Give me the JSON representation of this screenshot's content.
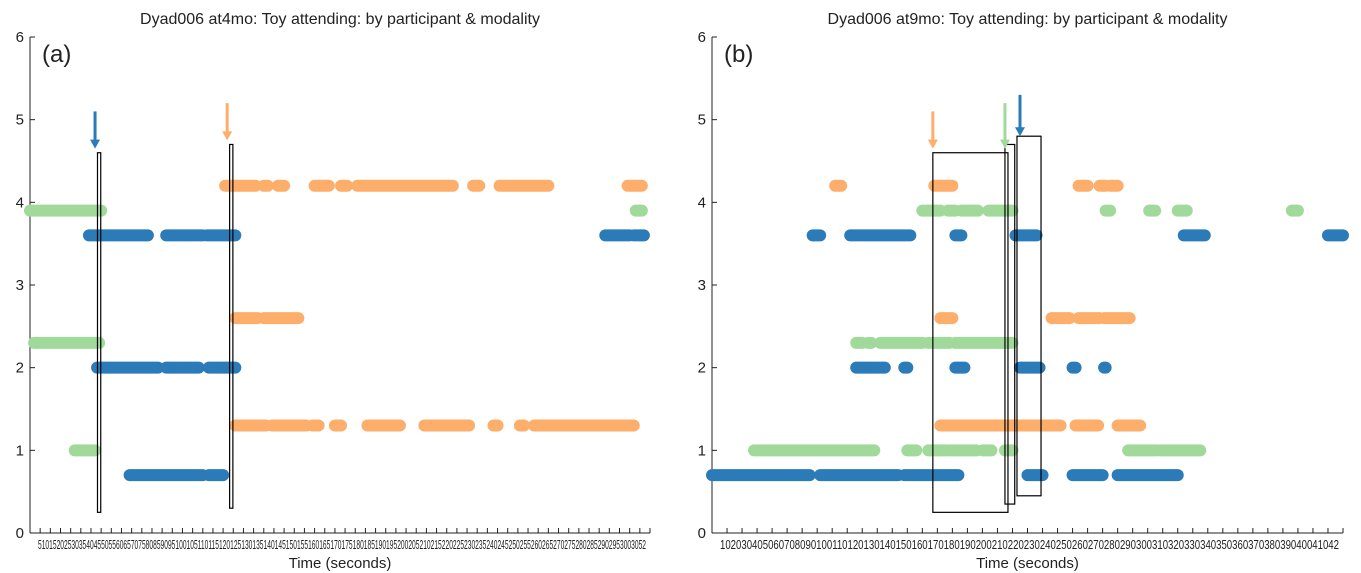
{
  "colors": {
    "blue": "#2b7bb9",
    "orange": "#fdae6b",
    "green": "#a1d99b"
  },
  "chart_data": [
    {
      "type": "scatter",
      "panel_label": "(a)",
      "title": "Dyad006 at4mo: Toy attending: by participant & modality",
      "xlabel": "Time (seconds)",
      "ylabel": "",
      "xlim": [
        0,
        305
      ],
      "ylim": [
        0,
        6
      ],
      "yticks": [
        "0",
        "1",
        "2",
        "3",
        "4",
        "5",
        "6"
      ],
      "xtick_labels": "51015202530354045505560657075808590951001051101151201251301351401451501551601651701751801851901952002052102152202252302352402452502552602652702752802852902953003052",
      "series": [
        {
          "color": "green",
          "y": 3.9,
          "segments": [
            [
              0,
              35
            ]
          ]
        },
        {
          "color": "blue",
          "y": 3.6,
          "segments": [
            [
              29,
              58
            ],
            [
              67,
              85
            ],
            [
              87,
              101
            ],
            [
              283,
              295
            ],
            [
              297,
              302
            ]
          ]
        },
        {
          "color": "orange",
          "y": 4.2,
          "segments": [
            [
              96,
              111
            ],
            [
              115,
              117
            ],
            [
              122,
              125
            ],
            [
              140,
              147
            ],
            [
              153,
              156
            ],
            [
              161,
              208
            ],
            [
              218,
              221
            ],
            [
              231,
              255
            ],
            [
              294,
              301
            ]
          ]
        },
        {
          "color": "green",
          "y": 3.9,
          "segments": [
            [
              298,
              301
            ]
          ]
        },
        {
          "color": "orange",
          "y": 2.6,
          "segments": [
            [
              101,
              112
            ],
            [
              115,
              132
            ]
          ]
        },
        {
          "color": "green",
          "y": 2.3,
          "segments": [
            [
              2,
              15
            ],
            [
              16,
              34
            ]
          ]
        },
        {
          "color": "blue",
          "y": 2.0,
          "segments": [
            [
              33,
              63
            ],
            [
              67,
              83
            ],
            [
              88,
              101
            ]
          ]
        },
        {
          "color": "orange",
          "y": 1.3,
          "segments": [
            [
              101,
              116
            ],
            [
              119,
              136
            ],
            [
              139,
              142
            ],
            [
              150,
              153
            ],
            [
              166,
              182
            ],
            [
              194,
              216
            ],
            [
              228,
              230
            ],
            [
              241,
              243
            ],
            [
              248,
              297
            ]
          ]
        },
        {
          "color": "green",
          "y": 1.0,
          "segments": [
            [
              22,
              32
            ]
          ]
        },
        {
          "color": "blue",
          "y": 0.7,
          "segments": [
            [
              49,
              85
            ],
            [
              88,
              95
            ]
          ]
        }
      ],
      "annotations": {
        "arrows": [
          {
            "color": "blue",
            "x": 32,
            "y_from": 5.1,
            "y_to": 4.65
          },
          {
            "color": "orange",
            "x": 97,
            "y_from": 5.2,
            "y_to": 4.75
          }
        ],
        "boxes": [
          {
            "x0": 33.2,
            "x1": 34.8,
            "y0": 0.25,
            "y1": 4.6
          },
          {
            "x0": 98.2,
            "x1": 99.8,
            "y0": 0.3,
            "y1": 4.7
          }
        ]
      }
    },
    {
      "type": "scatter",
      "panel_label": "(b)",
      "title": "Dyad006 at9mo: Toy attending: by participant & modality",
      "xlabel": "Time (seconds)",
      "ylabel": "",
      "xlim": [
        0,
        420
      ],
      "ylim": [
        0,
        6
      ],
      "yticks": [
        "0",
        "1",
        "2",
        "3",
        "4",
        "5",
        "6"
      ],
      "xtick_labels": "10203040506070809010011012013014015016017018019020021022023024025026027028029030031032033034035036037038039040041042",
      "series": [
        {
          "color": "orange",
          "y": 4.2,
          "segments": [
            [
              82,
              86
            ],
            [
              148,
              160
            ],
            [
              244,
              250
            ],
            [
              258,
              262
            ],
            [
              265,
              270
            ]
          ]
        },
        {
          "color": "green",
          "y": 3.9,
          "segments": [
            [
              140,
              152
            ],
            [
              157,
              162
            ],
            [
              166,
              177
            ],
            [
              184,
              200
            ],
            [
              262,
              265
            ],
            [
              291,
              295
            ],
            [
              310,
              316
            ],
            [
              386,
              390
            ]
          ]
        },
        {
          "color": "blue",
          "y": 3.6,
          "segments": [
            [
              67,
              72
            ],
            [
              92,
              132
            ],
            [
              162,
              166
            ],
            [
              202,
              216
            ],
            [
              314,
              328
            ],
            [
              410,
              420
            ]
          ]
        },
        {
          "color": "orange",
          "y": 2.6,
          "segments": [
            [
              152,
              160
            ],
            [
              226,
              238
            ],
            [
              244,
              258
            ],
            [
              261,
              278
            ]
          ]
        },
        {
          "color": "green",
          "y": 2.3,
          "segments": [
            [
              96,
              100
            ],
            [
              104,
              106
            ],
            [
              112,
              140
            ],
            [
              144,
              158
            ],
            [
              162,
              200
            ]
          ]
        },
        {
          "color": "blue",
          "y": 2.0,
          "segments": [
            [
              96,
              115
            ],
            [
              128,
              130
            ],
            [
              162,
              168
            ],
            [
              205,
              218
            ],
            [
              240,
              242
            ],
            [
              261,
              262
            ]
          ]
        },
        {
          "color": "orange",
          "y": 1.3,
          "segments": [
            [
              152,
              232
            ],
            [
              242,
              257
            ],
            [
              270,
              285
            ]
          ]
        },
        {
          "color": "green",
          "y": 1.0,
          "segments": [
            [
              28,
              108
            ],
            [
              130,
              136
            ],
            [
              144,
              156
            ],
            [
              158,
              176
            ],
            [
              180,
              186
            ],
            [
              195,
              200
            ],
            [
              277,
              296
            ],
            [
              298,
              325
            ]
          ]
        },
        {
          "color": "blue",
          "y": 0.7,
          "segments": [
            [
              0,
              65
            ],
            [
              72,
              124
            ],
            [
              128,
              164
            ],
            [
              210,
              220
            ],
            [
              240,
              260
            ],
            [
              270,
              310
            ]
          ]
        }
      ],
      "annotations": {
        "arrows": [
          {
            "color": "orange",
            "x": 147,
            "y_from": 5.1,
            "y_to": 4.65
          },
          {
            "color": "green",
            "x": 195,
            "y_from": 5.2,
            "y_to": 4.65
          },
          {
            "color": "blue",
            "x": 205,
            "y_from": 5.3,
            "y_to": 4.8
          }
        ],
        "boxes": [
          {
            "x0": 147,
            "x1": 197,
            "y0": 0.25,
            "y1": 4.6
          },
          {
            "x0": 195,
            "x1": 201.5,
            "y0": 0.35,
            "y1": 4.7
          },
          {
            "x0": 203,
            "x1": 219,
            "y0": 0.45,
            "y1": 4.8
          }
        ]
      }
    }
  ]
}
